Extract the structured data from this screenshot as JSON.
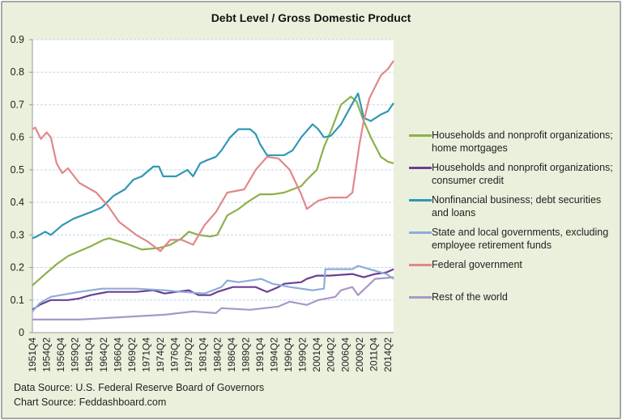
{
  "chart_data": {
    "type": "line",
    "title": "Debt Level / Gross Domestic Product",
    "xlabel": "",
    "ylabel": "",
    "ylim": [
      0,
      0.9
    ],
    "yticks": [
      "0",
      "0.1",
      "0.2",
      "0.3",
      "0.4",
      "0.5",
      "0.6",
      "0.7",
      "0.8",
      "0.9"
    ],
    "xrange": [
      "1951Q4",
      "2015Q2"
    ],
    "xticks": [
      "1951Q4",
      "1954Q2",
      "1956Q4",
      "1959Q2",
      "1961Q4",
      "1964Q2",
      "1966Q4",
      "1969Q2",
      "1971Q4",
      "1974Q2",
      "1976Q4",
      "1979Q2",
      "1981Q4",
      "1984Q2",
      "1986Q4",
      "1989Q2",
      "1991Q4",
      "1994Q2",
      "1996Q4",
      "1999Q2",
      "2001Q4",
      "2004Q2",
      "2006Q4",
      "2009Q2",
      "2011Q4",
      "2014Q2"
    ],
    "grid": true,
    "legend_placement": "right",
    "series": [
      {
        "name": "Households and nonprofit organizations; home mortgages",
        "color": "#8db04a",
        "points": [
          [
            "1951Q4",
            0.145
          ],
          [
            "1954Q1",
            0.18
          ],
          [
            "1956Q1",
            0.21
          ],
          [
            "1958Q1",
            0.235
          ],
          [
            "1960Q1",
            0.25
          ],
          [
            "1962Q1",
            0.265
          ],
          [
            "1964Q2",
            0.285
          ],
          [
            "1965Q2",
            0.29
          ],
          [
            "1968Q1",
            0.275
          ],
          [
            "1971Q1",
            0.255
          ],
          [
            "1974Q1",
            0.26
          ],
          [
            "1976Q1",
            0.27
          ],
          [
            "1978Q1",
            0.29
          ],
          [
            "1979Q2",
            0.31
          ],
          [
            "1981Q1",
            0.3
          ],
          [
            "1983Q1",
            0.295
          ],
          [
            "1984Q2",
            0.3
          ],
          [
            "1986Q1",
            0.36
          ],
          [
            "1988Q1",
            0.38
          ],
          [
            "1989Q3",
            0.4
          ],
          [
            "1991Q4",
            0.425
          ],
          [
            "1994Q1",
            0.425
          ],
          [
            "1996Q1",
            0.43
          ],
          [
            "1999Q1",
            0.45
          ],
          [
            "2000Q1",
            0.47
          ],
          [
            "2001Q4",
            0.5
          ],
          [
            "2003Q1",
            0.57
          ],
          [
            "2004Q2",
            0.62
          ],
          [
            "2006Q1",
            0.7
          ],
          [
            "2007Q4",
            0.725
          ],
          [
            "2008Q4",
            0.71
          ],
          [
            "2010Q1",
            0.65
          ],
          [
            "2011Q2",
            0.6
          ],
          [
            "2013Q1",
            0.54
          ],
          [
            "2014Q2",
            0.525
          ],
          [
            "2015Q2",
            0.52
          ]
        ]
      },
      {
        "name": "Households and nonprofit organizations; consumer credit",
        "color": "#6b3f92",
        "points": [
          [
            "1951Q4",
            0.07
          ],
          [
            "1953Q1",
            0.085
          ],
          [
            "1955Q1",
            0.1
          ],
          [
            "1958Q1",
            0.1
          ],
          [
            "1960Q1",
            0.105
          ],
          [
            "1962Q1",
            0.115
          ],
          [
            "1965Q1",
            0.125
          ],
          [
            "1970Q1",
            0.125
          ],
          [
            "1973Q1",
            0.13
          ],
          [
            "1975Q1",
            0.12
          ],
          [
            "1977Q1",
            0.125
          ],
          [
            "1979Q2",
            0.13
          ],
          [
            "1981Q1",
            0.115
          ],
          [
            "1983Q1",
            0.115
          ],
          [
            "1984Q2",
            0.125
          ],
          [
            "1987Q1",
            0.14
          ],
          [
            "1991Q1",
            0.14
          ],
          [
            "1993Q1",
            0.125
          ],
          [
            "1995Q1",
            0.14
          ],
          [
            "1996Q1",
            0.15
          ],
          [
            "1999Q1",
            0.155
          ],
          [
            "2000Q1",
            0.165
          ],
          [
            "2001Q4",
            0.175
          ],
          [
            "2004Q1",
            0.175
          ],
          [
            "2008Q1",
            0.18
          ],
          [
            "2010Q1",
            0.17
          ],
          [
            "2012Q1",
            0.18
          ],
          [
            "2014Q1",
            0.185
          ],
          [
            "2015Q2",
            0.195
          ]
        ]
      },
      {
        "name": "Nonfinancial business; debt securities and loans",
        "color": "#2f97b5",
        "points": [
          [
            "1951Q4",
            0.29
          ],
          [
            "1952Q3",
            0.295
          ],
          [
            "1954Q1",
            0.31
          ],
          [
            "1955Q1",
            0.3
          ],
          [
            "1957Q1",
            0.33
          ],
          [
            "1959Q1",
            0.35
          ],
          [
            "1962Q1",
            0.37
          ],
          [
            "1964Q1",
            0.385
          ],
          [
            "1966Q1",
            0.42
          ],
          [
            "1968Q1",
            0.44
          ],
          [
            "1969Q3",
            0.47
          ],
          [
            "1971Q1",
            0.48
          ],
          [
            "1973Q1",
            0.51
          ],
          [
            "1974Q1",
            0.51
          ],
          [
            "1974Q4",
            0.48
          ],
          [
            "1977Q1",
            0.48
          ],
          [
            "1979Q1",
            0.5
          ],
          [
            "1980Q1",
            0.48
          ],
          [
            "1981Q2",
            0.52
          ],
          [
            "1982Q3",
            0.53
          ],
          [
            "1984Q1",
            0.54
          ],
          [
            "1985Q1",
            0.56
          ],
          [
            "1986Q3",
            0.6
          ],
          [
            "1988Q1",
            0.625
          ],
          [
            "1990Q1",
            0.625
          ],
          [
            "1991Q1",
            0.61
          ],
          [
            "1991Q4",
            0.58
          ],
          [
            "1993Q1",
            0.545
          ],
          [
            "1996Q1",
            0.545
          ],
          [
            "1997Q3",
            0.56
          ],
          [
            "1999Q1",
            0.6
          ],
          [
            "2001Q1",
            0.64
          ],
          [
            "2002Q1",
            0.625
          ],
          [
            "2003Q1",
            0.6
          ],
          [
            "2004Q2",
            0.605
          ],
          [
            "2006Q1",
            0.64
          ],
          [
            "2007Q2",
            0.68
          ],
          [
            "2009Q1",
            0.735
          ],
          [
            "2010Q1",
            0.66
          ],
          [
            "2011Q2",
            0.65
          ],
          [
            "2013Q1",
            0.67
          ],
          [
            "2014Q2",
            0.68
          ],
          [
            "2015Q2",
            0.705
          ]
        ]
      },
      {
        "name": "State and local governments, excluding employee retirement funds",
        "color": "#8eacd9",
        "points": [
          [
            "1951Q4",
            0.065
          ],
          [
            "1953Q1",
            0.09
          ],
          [
            "1955Q1",
            0.11
          ],
          [
            "1960Q1",
            0.125
          ],
          [
            "1964Q1",
            0.135
          ],
          [
            "1970Q1",
            0.135
          ],
          [
            "1975Q1",
            0.13
          ],
          [
            "1978Q1",
            0.125
          ],
          [
            "1982Q1",
            0.12
          ],
          [
            "1985Q1",
            0.14
          ],
          [
            "1986Q1",
            0.16
          ],
          [
            "1988Q1",
            0.155
          ],
          [
            "1992Q1",
            0.165
          ],
          [
            "1994Q1",
            0.15
          ],
          [
            "1997Q1",
            0.14
          ],
          [
            "2001Q1",
            0.13
          ],
          [
            "2003Q1",
            0.135
          ],
          [
            "2003Q2",
            0.195
          ],
          [
            "2008Q1",
            0.195
          ],
          [
            "2009Q1",
            0.205
          ],
          [
            "2011Q1",
            0.195
          ],
          [
            "2014Q1",
            0.18
          ],
          [
            "2015Q2",
            0.165
          ]
        ]
      },
      {
        "name": "Federal government",
        "color": "#e0888a",
        "points": [
          [
            "1951Q4",
            0.625
          ],
          [
            "1952Q2",
            0.63
          ],
          [
            "1953Q2",
            0.595
          ],
          [
            "1954Q2",
            0.615
          ],
          [
            "1955Q1",
            0.6
          ],
          [
            "1956Q1",
            0.52
          ],
          [
            "1957Q1",
            0.49
          ],
          [
            "1958Q1",
            0.505
          ],
          [
            "1960Q1",
            0.46
          ],
          [
            "1963Q1",
            0.43
          ],
          [
            "1965Q1",
            0.39
          ],
          [
            "1967Q1",
            0.34
          ],
          [
            "1970Q1",
            0.3
          ],
          [
            "1972Q1",
            0.28
          ],
          [
            "1974Q2",
            0.25
          ],
          [
            "1976Q1",
            0.285
          ],
          [
            "1978Q1",
            0.285
          ],
          [
            "1980Q1",
            0.27
          ],
          [
            "1982Q1",
            0.33
          ],
          [
            "1984Q1",
            0.37
          ],
          [
            "1986Q1",
            0.43
          ],
          [
            "1989Q1",
            0.44
          ],
          [
            "1991Q1",
            0.5
          ],
          [
            "1993Q1",
            0.54
          ],
          [
            "1995Q1",
            0.535
          ],
          [
            "1997Q1",
            0.5
          ],
          [
            "1999Q1",
            0.425
          ],
          [
            "2000Q1",
            0.38
          ],
          [
            "2002Q1",
            0.405
          ],
          [
            "2004Q1",
            0.415
          ],
          [
            "2007Q1",
            0.415
          ],
          [
            "2008Q1",
            0.43
          ],
          [
            "2009Q2",
            0.58
          ],
          [
            "2010Q1",
            0.65
          ],
          [
            "2011Q1",
            0.72
          ],
          [
            "2013Q1",
            0.79
          ],
          [
            "2014Q2",
            0.81
          ],
          [
            "2015Q2",
            0.835
          ]
        ]
      },
      {
        "name": "Rest of the world",
        "color": "#a898c8",
        "points": [
          [
            "1951Q4",
            0.04
          ],
          [
            "1960Q1",
            0.04
          ],
          [
            "1965Q1",
            0.045
          ],
          [
            "1970Q1",
            0.05
          ],
          [
            "1975Q1",
            0.055
          ],
          [
            "1980Q1",
            0.065
          ],
          [
            "1984Q1",
            0.06
          ],
          [
            "1985Q1",
            0.075
          ],
          [
            "1990Q1",
            0.07
          ],
          [
            "1995Q1",
            0.08
          ],
          [
            "1997Q1",
            0.095
          ],
          [
            "2000Q1",
            0.085
          ],
          [
            "2002Q1",
            0.1
          ],
          [
            "2005Q1",
            0.11
          ],
          [
            "2006Q1",
            0.13
          ],
          [
            "2008Q1",
            0.14
          ],
          [
            "2009Q1",
            0.115
          ],
          [
            "2012Q1",
            0.165
          ],
          [
            "2015Q2",
            0.17
          ]
        ]
      }
    ]
  },
  "footer": {
    "data_source": "Data Source: U.S. Federal Reserve Board of Governors",
    "chart_source": "Chart Source: Feddashboard.com"
  }
}
